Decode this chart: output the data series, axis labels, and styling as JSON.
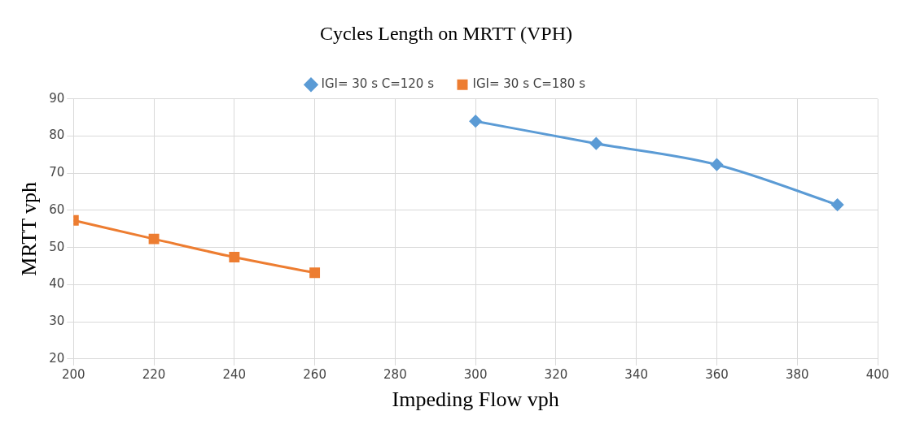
{
  "chart_data": {
    "type": "line",
    "title": "Cycles Length on MRTT (VPH)",
    "xlabel": "Impeding Flow vph",
    "ylabel": "MRTT vph",
    "series": [
      {
        "name": "IGI= 30 s C=120 s",
        "color": "#5b9bd5",
        "marker": "diamond",
        "x": [
          300,
          330,
          360,
          390
        ],
        "values": [
          84,
          78,
          72.3,
          61.5
        ]
      },
      {
        "name": "IGI= 30 s C=180 s",
        "color": "#ed7d31",
        "marker": "square",
        "x": [
          200,
          220,
          240,
          260
        ],
        "values": [
          57.3,
          52.3,
          47.4,
          43.2
        ]
      }
    ],
    "xlim": [
      200,
      400
    ],
    "xticks": [
      200,
      220,
      240,
      260,
      280,
      300,
      320,
      340,
      360,
      380,
      400
    ],
    "ylim": [
      20,
      90
    ],
    "yticks": [
      20,
      30,
      40,
      50,
      60,
      70,
      80,
      90
    ],
    "grid": true,
    "legend": "top"
  }
}
